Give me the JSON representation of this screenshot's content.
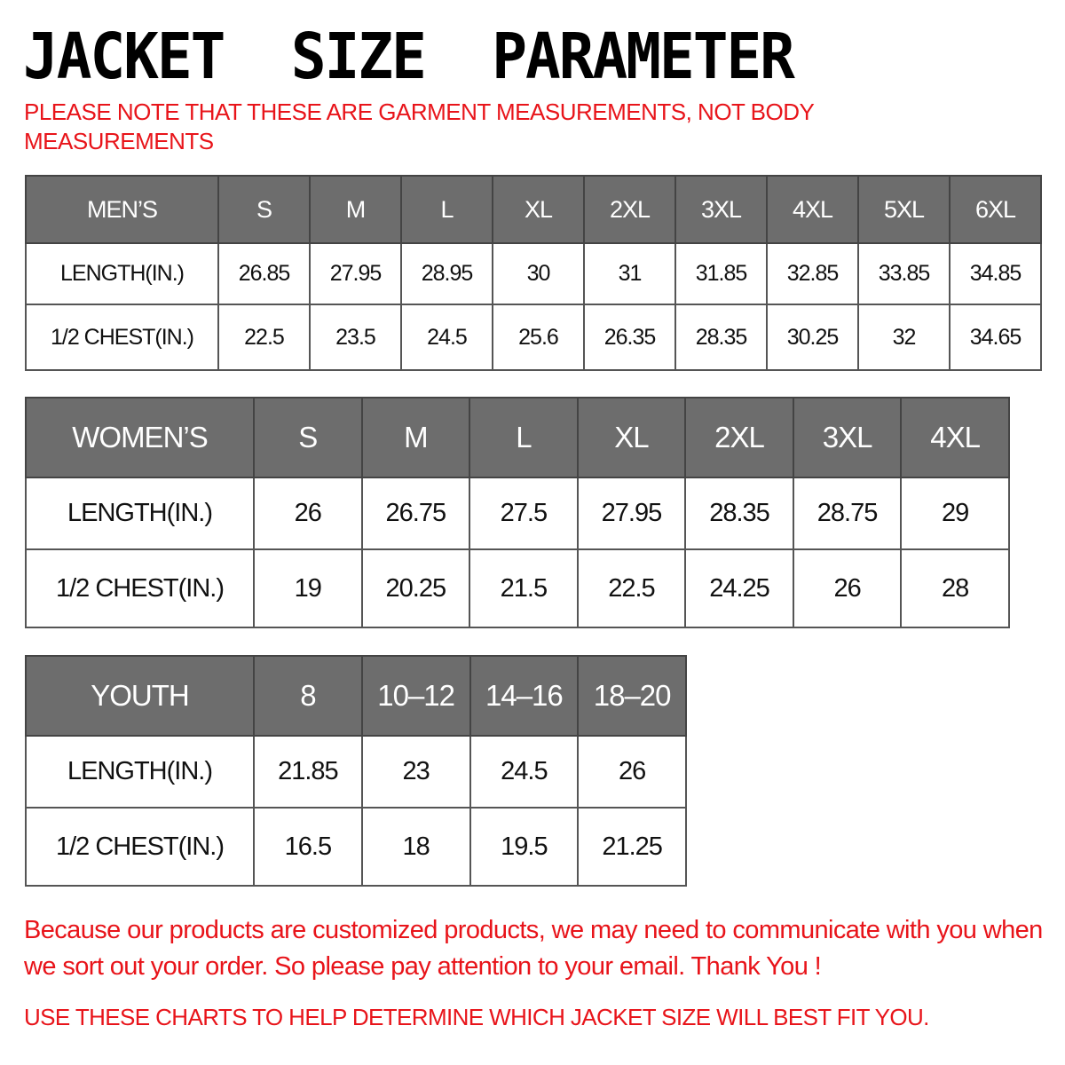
{
  "title": "JACKET  SIZE  PARAMETER",
  "note": "PLEASE NOTE THAT THESE ARE GARMENT MEASUREMENTS, NOT BODY MEASUREMENTS",
  "colors": {
    "header_bg": "#6d6d6d",
    "accent_red": "#e8141a"
  },
  "tables": {
    "men": {
      "header": [
        "MEN’S",
        "S",
        "M",
        "L",
        "XL",
        "2XL",
        "3XL",
        "4XL",
        "5XL",
        "6XL"
      ],
      "rows": [
        [
          "LENGTH(IN.)",
          "26.85",
          "27.95",
          "28.95",
          "30",
          "31",
          "31.85",
          "32.85",
          "33.85",
          "34.85"
        ],
        [
          "1/2 CHEST(IN.)",
          "22.5",
          "23.5",
          "24.5",
          "25.6",
          "26.35",
          "28.35",
          "30.25",
          "32",
          "34.65"
        ]
      ]
    },
    "women": {
      "header": [
        "WOMEN’S",
        "S",
        "M",
        "L",
        "XL",
        "2XL",
        "3XL",
        "4XL"
      ],
      "rows": [
        [
          "LENGTH(IN.)",
          "26",
          "26.75",
          "27.5",
          "27.95",
          "28.35",
          "28.75",
          "29"
        ],
        [
          "1/2 CHEST(IN.)",
          "19",
          "20.25",
          "21.5",
          "22.5",
          "24.25",
          "26",
          "28"
        ]
      ]
    },
    "youth": {
      "header": [
        "YOUTH",
        "8",
        "10–12",
        "14–16",
        "18–20"
      ],
      "rows": [
        [
          "LENGTH(IN.)",
          "21.85",
          "23",
          "24.5",
          "26"
        ],
        [
          "1/2 CHEST(IN.)",
          "16.5",
          "18",
          "19.5",
          "21.25"
        ]
      ]
    }
  },
  "footer": {
    "message": "Because our products are customized products, we may need to communicate with you when we sort out your order. So please pay attention to your email. Thank You !",
    "instruction": "USE THESE CHARTS TO HELP DETERMINE WHICH JACKET SIZE WILL BEST FIT YOU."
  }
}
